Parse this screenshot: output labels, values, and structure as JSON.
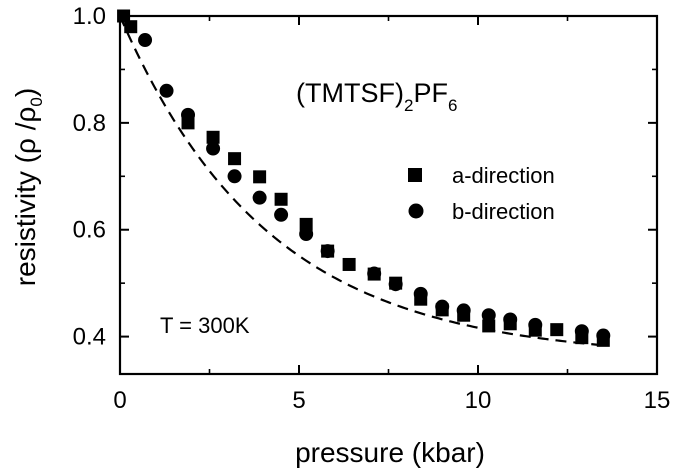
{
  "chart_data": {
    "type": "scatter",
    "title": "",
    "compound": {
      "prefix": "(TMTSF)",
      "sub1": "2",
      "mid": "PF",
      "sub2": "6"
    },
    "annotation": "T = 300K",
    "xlabel": "pressure (kbar)",
    "ylabel": {
      "prefix": "resistivity (ρ /ρ",
      "sub": "0",
      "suffix": ")"
    },
    "xlim": [
      0,
      15
    ],
    "ylim": [
      0.33,
      1.0
    ],
    "xticks": [
      0,
      5,
      10,
      15
    ],
    "xtick_labels": [
      "0",
      "5",
      "10",
      "15"
    ],
    "yticks": [
      0.4,
      0.6,
      0.8,
      1.0
    ],
    "ytick_labels": [
      "0.4",
      "0.6",
      "0.8",
      "1.0"
    ],
    "legend_position": "right-middle",
    "series": [
      {
        "name": "a-direction",
        "marker": "square",
        "x": [
          0.1,
          0.3,
          1.9,
          2.6,
          3.2,
          3.9,
          4.5,
          5.2,
          5.8,
          6.4,
          7.1,
          7.7,
          8.4,
          9.0,
          9.6,
          10.3,
          10.9,
          11.6,
          12.2,
          12.9,
          13.5
        ],
        "y": [
          1.0,
          0.98,
          0.8,
          0.773,
          0.733,
          0.699,
          0.657,
          0.61,
          0.56,
          0.535,
          0.517,
          0.5,
          0.47,
          0.45,
          0.44,
          0.42,
          0.424,
          0.412,
          0.413,
          0.398,
          0.393
        ]
      },
      {
        "name": "b-direction",
        "marker": "circle",
        "x": [
          0.7,
          1.3,
          1.9,
          2.6,
          3.2,
          3.9,
          4.5,
          5.2,
          5.8,
          7.1,
          7.7,
          8.4,
          9.0,
          9.6,
          10.3,
          10.9,
          11.6,
          12.9,
          13.5
        ],
        "y": [
          0.955,
          0.86,
          0.815,
          0.752,
          0.7,
          0.66,
          0.628,
          0.592,
          0.56,
          0.518,
          0.498,
          0.48,
          0.456,
          0.449,
          0.44,
          0.432,
          0.422,
          0.41,
          0.402
        ]
      }
    ],
    "fit_curve": {
      "style": "dashed",
      "equation": "y = 0.359 + 0.641*exp(-x/4.15)",
      "x_range": [
        0,
        13.5
      ]
    }
  }
}
